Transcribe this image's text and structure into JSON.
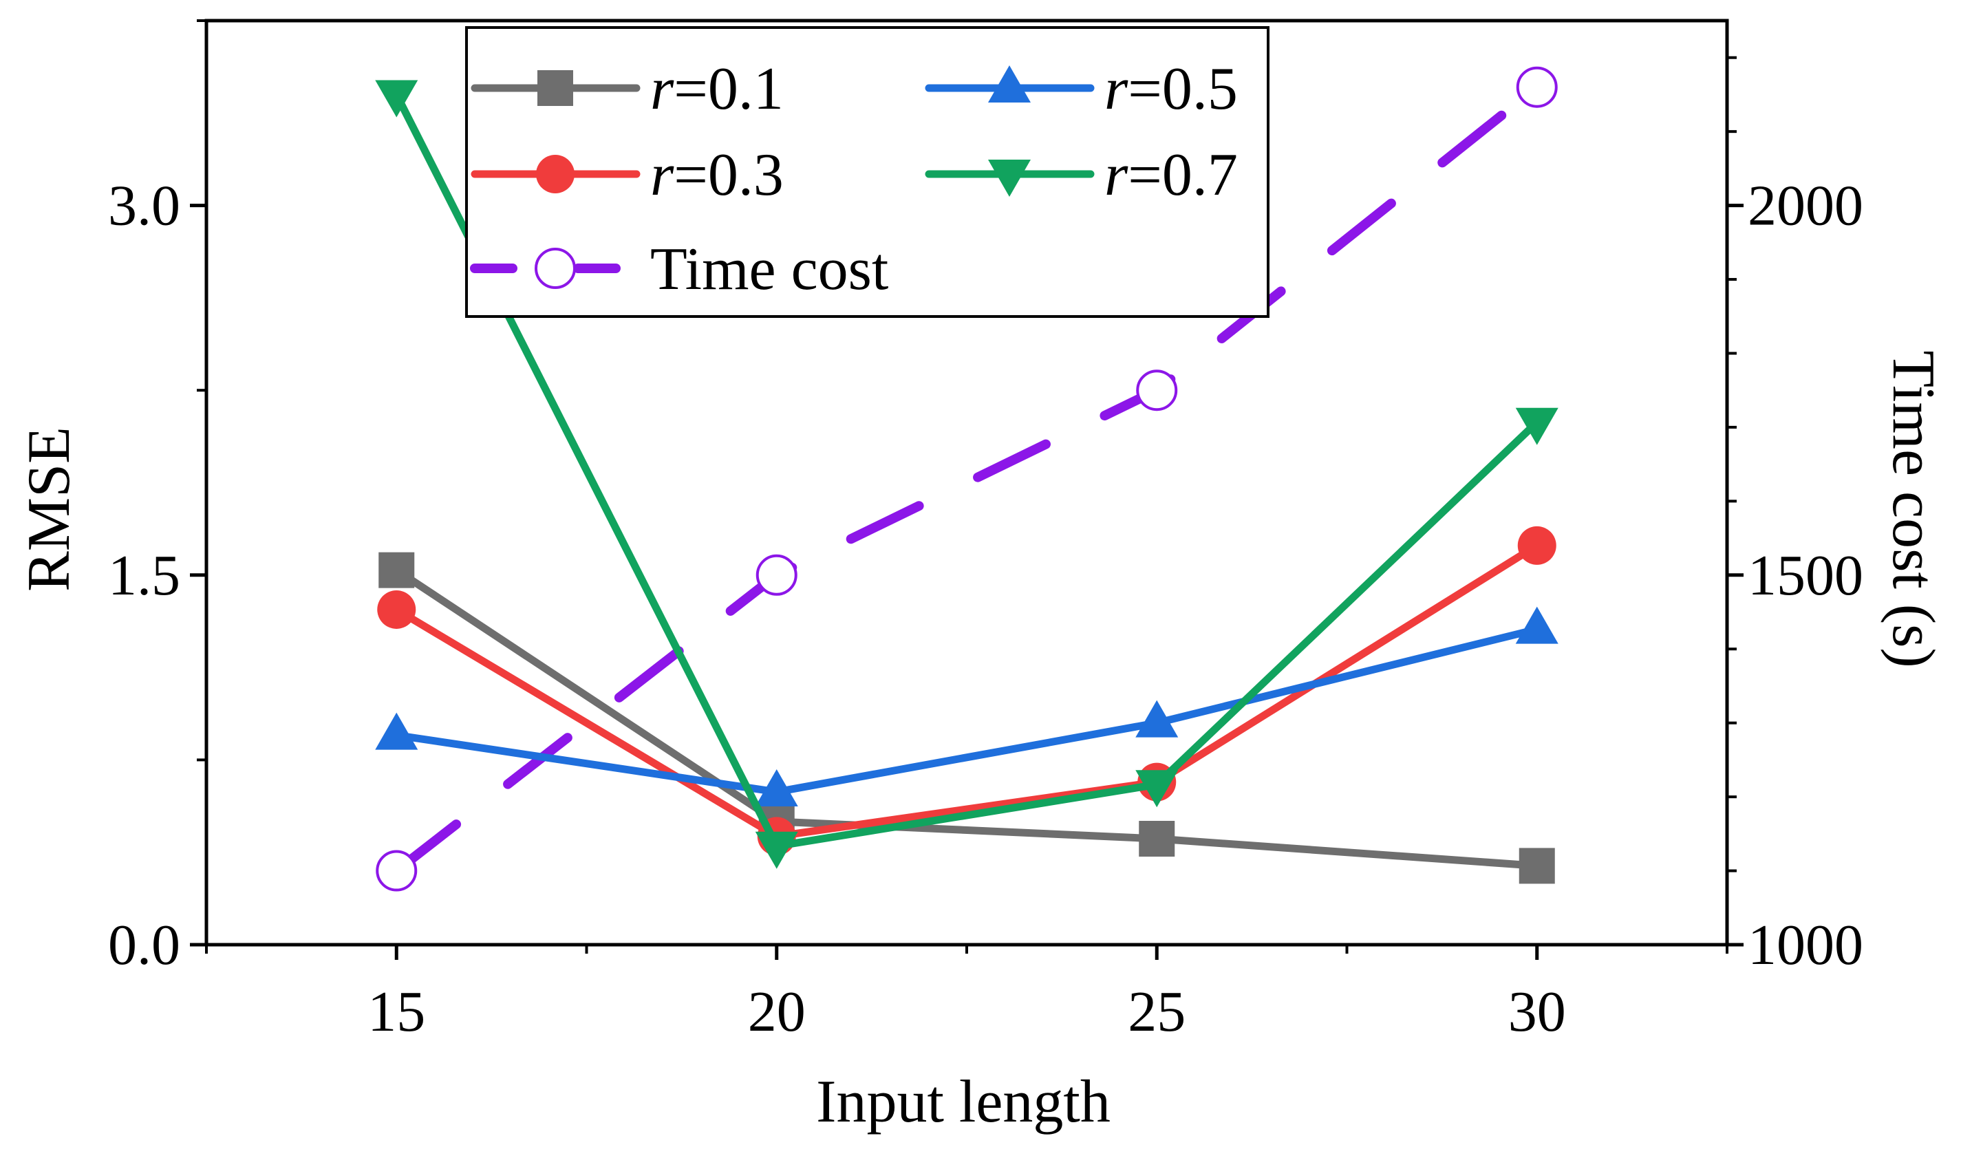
{
  "chart_data": {
    "type": "line",
    "x": [
      15,
      20,
      25,
      30
    ],
    "xlabel": "Input length",
    "ylabel": "RMSE",
    "y2label": "Time cost (s)",
    "xlim": [
      12.5,
      32.5
    ],
    "ylim": [
      0,
      3.75
    ],
    "y2lim": [
      1000,
      2250
    ],
    "xticks": [
      "15",
      "20",
      "25",
      "30"
    ],
    "yticks": [
      "0.0",
      "1.5",
      "3.0"
    ],
    "y2ticks": [
      "1000",
      "1500",
      "2000"
    ],
    "grid": false,
    "legend_position": "top-center",
    "series": [
      {
        "name": "r=0.1",
        "legend_var": "r",
        "legend_rest": "=0.1",
        "axis": "left",
        "color": "#6e6e6e",
        "marker": "square",
        "line": "solid",
        "values": [
          1.52,
          0.5,
          0.43,
          0.32
        ]
      },
      {
        "name": "r=0.3",
        "legend_var": "r",
        "legend_rest": "=0.3",
        "axis": "left",
        "color": "#f03c3c",
        "marker": "circle",
        "line": "solid",
        "values": [
          1.36,
          0.44,
          0.66,
          1.62
        ]
      },
      {
        "name": "r=0.5",
        "legend_var": "r",
        "legend_rest": "=0.5",
        "axis": "left",
        "color": "#1f6fdc",
        "marker": "triangle-up",
        "line": "solid",
        "values": [
          0.85,
          0.62,
          0.9,
          1.28
        ]
      },
      {
        "name": "r=0.7",
        "legend_var": "r",
        "legend_rest": "=0.7",
        "axis": "left",
        "color": "#11a35e",
        "marker": "triangle-down",
        "line": "solid",
        "values": [
          3.45,
          0.4,
          0.65,
          2.12
        ]
      },
      {
        "name": "Time cost",
        "legend_var": "",
        "legend_rest": "Time cost",
        "axis": "right",
        "color": "#8c16e8",
        "marker": "open-circle",
        "line": "dashed",
        "values": [
          1100,
          1500,
          1750,
          2160
        ]
      }
    ]
  }
}
